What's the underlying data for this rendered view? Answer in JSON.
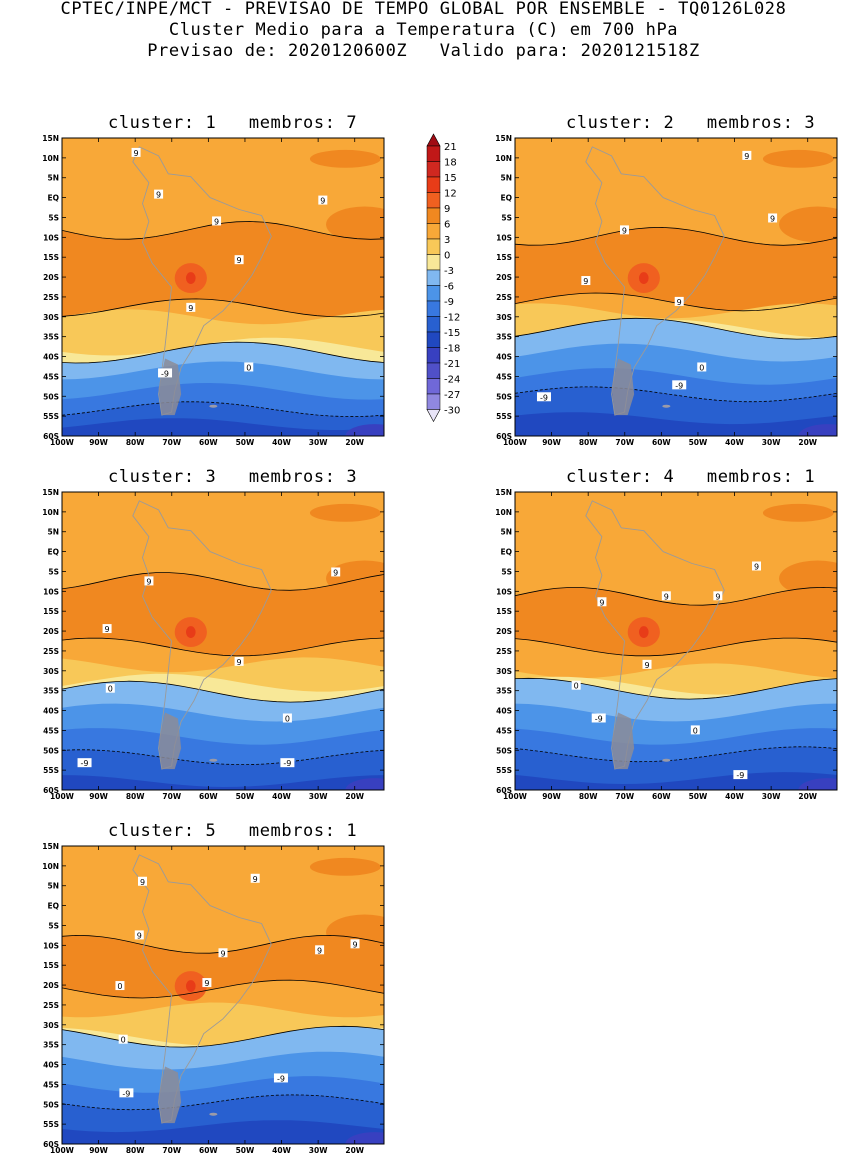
{
  "header": {
    "line1": "CPTEC/INPE/MCT - PREVISAO DE TEMPO GLOBAL POR ENSEMBLE - TQ0126L028",
    "line2": "Cluster Medio para a Temperatura (C) em 700 hPa",
    "line3": "Previsao de: 2020120600Z   Valido para: 2020121518Z"
  },
  "axes": {
    "lat_labels": [
      "15N",
      "10N",
      "5N",
      "EQ",
      "5S",
      "10S",
      "15S",
      "20S",
      "25S",
      "30S",
      "35S",
      "40S",
      "45S",
      "50S",
      "55S",
      "60S"
    ],
    "lon_labels": [
      "100W",
      "90W",
      "80W",
      "70W",
      "60W",
      "50W",
      "40W",
      "30W",
      "20W"
    ]
  },
  "colorbar": {
    "labels": [
      "21",
      "18",
      "15",
      "12",
      "9",
      "6",
      "3",
      "0",
      "-3",
      "-6",
      "-9",
      "-12",
      "-15",
      "-18",
      "-21",
      "-24",
      "-27",
      "-30"
    ],
    "colors": [
      "#c01818",
      "#d02820",
      "#e83c18",
      "#f06020",
      "#f08820",
      "#f8a838",
      "#f8c858",
      "#f8e898",
      "#80b8f0",
      "#4c94e8",
      "#3878e0",
      "#2860d0",
      "#2048c0",
      "#3840c0",
      "#5050c8",
      "#7068d8",
      "#9088e0",
      "#b0a8e8",
      "#d0c8f0"
    ],
    "top_arrow_color": "#a00c14",
    "bottom_arrow_color": "#e8e4f8"
  },
  "panels": [
    {
      "id": "c1",
      "title": "cluster: 1   membros: 7",
      "labels": [
        "9",
        "9",
        "9",
        "9",
        "9",
        "9",
        "0",
        "-9"
      ]
    },
    {
      "id": "c2",
      "title": "cluster: 2   membros: 3",
      "labels": [
        "9",
        "9",
        "9",
        "9",
        "9",
        "0",
        "-9",
        "-9"
      ]
    },
    {
      "id": "c3",
      "title": "cluster: 3   membros: 3",
      "labels": [
        "9",
        "9",
        "9",
        "9",
        "0",
        "0",
        "-9",
        "-9"
      ]
    },
    {
      "id": "c4",
      "title": "cluster: 4   membros: 1",
      "labels": [
        "9",
        "9",
        "9",
        "9",
        "9",
        "0",
        "0",
        "-9",
        "-9"
      ]
    },
    {
      "id": "c5",
      "title": "cluster: 5   membros: 1",
      "labels": [
        "9",
        "9",
        "9",
        "9",
        "9",
        "9",
        "9",
        "0",
        "0",
        "-9",
        "-9"
      ]
    }
  ]
}
